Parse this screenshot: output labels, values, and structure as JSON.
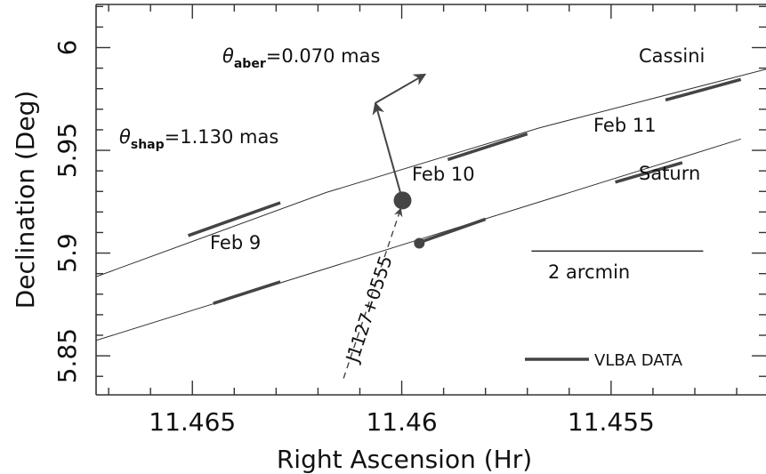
{
  "chart_data": {
    "type": "line",
    "xlabel": "Right Ascension (Hr)",
    "ylabel": "Declination (Deg)",
    "xlim": [
      11.4673,
      11.4513
    ],
    "ylim": [
      5.831,
      6.021
    ],
    "x_ticks": [
      11.465,
      11.46,
      11.455
    ],
    "x_tick_labels": [
      "11.465",
      "11.46",
      "11.455"
    ],
    "y_ticks": [
      5.85,
      5.9,
      5.95,
      6.0
    ],
    "y_tick_labels": [
      "5.85",
      "5.9",
      "5.95",
      "6"
    ],
    "grid": false,
    "series": [
      {
        "name": "Cassini",
        "points": [
          [
            11.4673,
            5.8885
          ],
          [
            11.4618,
            5.9295
          ],
          [
            11.4567,
            5.961
          ],
          [
            11.4513,
            5.9895
          ]
        ],
        "vlba_segments": [
          [
            [
              11.4651,
              5.9085
            ],
            [
              11.4629,
              5.9245
            ]
          ],
          [
            [
              11.4589,
              5.9455
            ],
            [
              11.457,
              5.958
            ]
          ],
          [
            [
              11.4537,
              5.9745
            ],
            [
              11.4519,
              5.9845
            ]
          ]
        ]
      },
      {
        "name": "Saturn",
        "points": [
          [
            11.4673,
            5.8575
          ],
          [
            11.4519,
            5.9555
          ]
        ],
        "vlba_segments": [
          [
            [
              11.4645,
              5.8755
            ],
            [
              11.4629,
              5.886
            ]
          ],
          [
            [
              11.4596,
              5.905
            ],
            [
              11.458,
              5.9165
            ]
          ],
          [
            [
              11.4549,
              5.9345
            ],
            [
              11.4533,
              5.944
            ]
          ]
        ]
      }
    ],
    "markers": [
      {
        "name": "Cassini position",
        "x": 11.45998,
        "y": 5.9256,
        "size": "large"
      },
      {
        "name": "Saturn position",
        "x": 11.45958,
        "y": 5.9048,
        "size": "small"
      }
    ],
    "calibrator": {
      "name": "J1127+0555",
      "from": [
        11.46139,
        5.839
      ],
      "to": [
        11.45998,
        5.9256
      ]
    },
    "shapiro_vector": {
      "from": [
        11.45998,
        5.9256
      ],
      "to": [
        11.46063,
        5.973
      ],
      "label_symbol": "θ",
      "label_sub": "shap",
      "label_value": "=1.130 mas"
    },
    "aberration_vector": {
      "from": [
        11.46063,
        5.973
      ],
      "to": [
        11.45944,
        5.987
      ],
      "label_symbol": "θ",
      "label_sub": "aber",
      "label_value": "=0.070 mas"
    },
    "annotations": {
      "cassini": "Cassini",
      "saturn": "Saturn",
      "feb9": "Feb 9",
      "feb10": "Feb 10",
      "feb11": "Feb 11"
    },
    "scale_bar": {
      "label": "2 arcmin",
      "from": [
        11.4569,
        5.901
      ],
      "to": [
        11.4528,
        5.901
      ]
    },
    "legend": {
      "label": "VLBA DATA",
      "placement": "bottom-right"
    }
  }
}
